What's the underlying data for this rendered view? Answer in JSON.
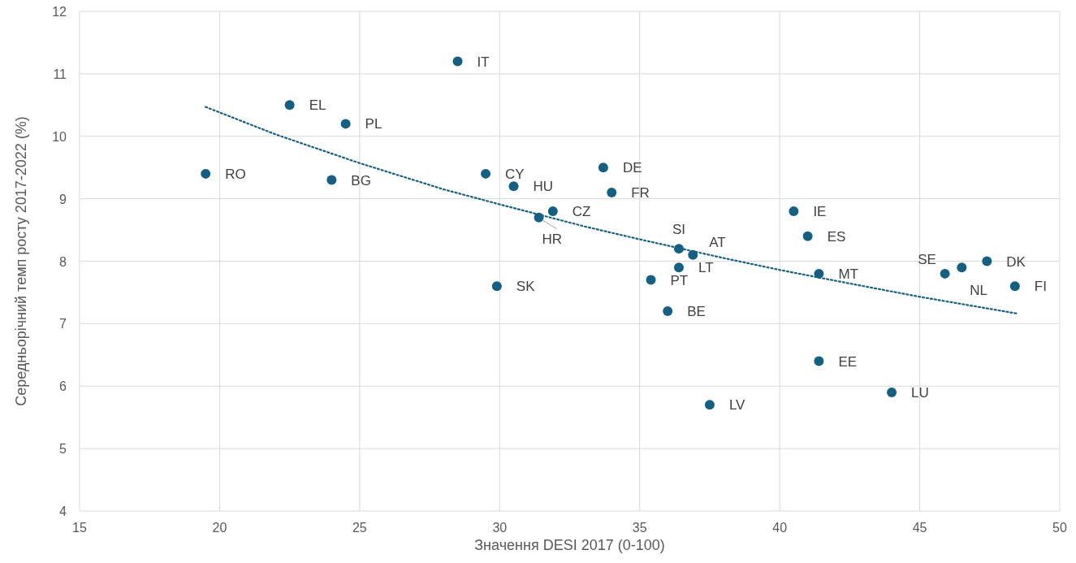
{
  "chart_data": {
    "type": "scatter",
    "xlabel": "Значення DESI 2017 (0-100)",
    "ylabel": "Середньорічний темп росту 2017-2022 (%)",
    "xlim": [
      15,
      50
    ],
    "xticks": [
      15,
      20,
      25,
      30,
      35,
      40,
      45,
      50
    ],
    "ylim": [
      4,
      12
    ],
    "yticks": [
      4,
      5,
      6,
      7,
      8,
      9,
      10,
      11,
      12
    ],
    "grid": true,
    "x": [
      19.5,
      22.5,
      24.5,
      24,
      28.5,
      29.5,
      30.5,
      31.9,
      31.4,
      29.9,
      33.7,
      34,
      36.4,
      36.9,
      36.4,
      35.4,
      36,
      37.5,
      40.5,
      41,
      41.4,
      41.4,
      44,
      45.9,
      46.5,
      47.4,
      48.4
    ],
    "series": [
      {
        "color": "#156082",
        "marker": "circle",
        "values": [
          9.4,
          10.5,
          10.2,
          9.3,
          11.2,
          9.4,
          9.2,
          8.8,
          8.7,
          7.6,
          9.5,
          9.1,
          8.2,
          8.1,
          7.9,
          7.7,
          7.2,
          5.7,
          8.8,
          8.4,
          7.8,
          6.4,
          5.9,
          7.8,
          7.9,
          8.0,
          7.6
        ]
      },
      {
        "type": "line",
        "color": "#156082",
        "marker": "none",
        "line_style": "dotted",
        "x": [
          19.5,
          22,
          25,
          28,
          30,
          33,
          35,
          38,
          40,
          43,
          45,
          48.5
        ],
        "values": [
          10.47,
          10.03,
          9.57,
          9.15,
          8.91,
          8.56,
          8.35,
          8.05,
          7.86,
          7.6,
          7.43,
          7.16
        ]
      }
    ],
    "annotations": [
      {
        "text": "RO",
        "x": 19.5,
        "y": 9.4
      },
      {
        "text": "EL",
        "x": 22.5,
        "y": 10.5
      },
      {
        "text": "PL",
        "x": 24.5,
        "y": 10.2
      },
      {
        "text": "BG",
        "x": 24,
        "y": 9.3
      },
      {
        "text": "IT",
        "x": 28.5,
        "y": 11.2
      },
      {
        "text": "CY",
        "x": 29.5,
        "y": 9.4
      },
      {
        "text": "HU",
        "x": 30.5,
        "y": 9.2
      },
      {
        "text": "CZ",
        "x": 31.9,
        "y": 8.8
      },
      {
        "text": "HR",
        "x": 31.4,
        "y": 8.7
      },
      {
        "text": "SK",
        "x": 29.9,
        "y": 7.6
      },
      {
        "text": "DE",
        "x": 33.7,
        "y": 9.5
      },
      {
        "text": "FR",
        "x": 34,
        "y": 9.1
      },
      {
        "text": "SI",
        "x": 36.4,
        "y": 8.2
      },
      {
        "text": "AT",
        "x": 36.9,
        "y": 8.1
      },
      {
        "text": "LT",
        "x": 36.4,
        "y": 7.9
      },
      {
        "text": "PT",
        "x": 35.4,
        "y": 7.7
      },
      {
        "text": "BE",
        "x": 36,
        "y": 7.2
      },
      {
        "text": "LV",
        "x": 37.5,
        "y": 5.7
      },
      {
        "text": "IE",
        "x": 40.5,
        "y": 8.8
      },
      {
        "text": "ES",
        "x": 41,
        "y": 8.4
      },
      {
        "text": "MT",
        "x": 41.4,
        "y": 7.8
      },
      {
        "text": "EE",
        "x": 41.4,
        "y": 6.4
      },
      {
        "text": "LU",
        "x": 44,
        "y": 5.9
      },
      {
        "text": "SE",
        "x": 45.9,
        "y": 7.8
      },
      {
        "text": "NL",
        "x": 46.5,
        "y": 7.9
      },
      {
        "text": "DK",
        "x": 47.4,
        "y": 8.0
      },
      {
        "text": "FI",
        "x": 48.4,
        "y": 7.6
      }
    ]
  }
}
